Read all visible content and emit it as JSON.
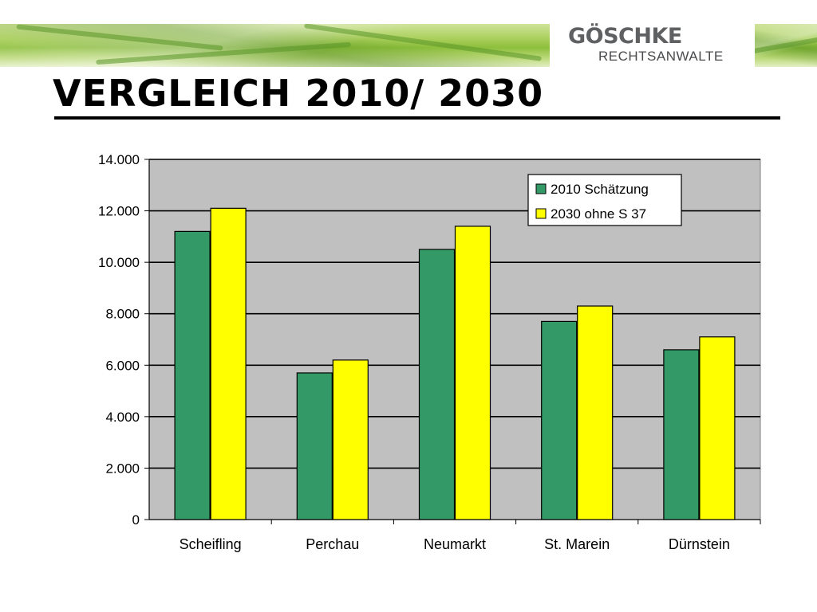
{
  "header": {
    "logo_name": "GÖSCHKE",
    "logo_sub": "RECHTSANWALTE"
  },
  "slide_title": "VERGLEICH 2010/ 2030",
  "colors": {
    "series_2010": "#339966",
    "series_2030": "#ffff00",
    "plot_background": "#c0c0c0",
    "banner_green": "#8dbf3c",
    "logo_gray": "#5f6062"
  },
  "chart_data": {
    "type": "bar",
    "categories": [
      "Scheifling",
      "Perchau",
      "Neumarkt",
      "St. Marein",
      "Dürnstein"
    ],
    "series": [
      {
        "name": "2010 Schätzung",
        "values": [
          11200,
          5700,
          10500,
          7700,
          6600
        ]
      },
      {
        "name": "2030 ohne S 37",
        "values": [
          12100,
          6200,
          11400,
          8300,
          7100
        ]
      }
    ],
    "ylim": [
      0,
      14000
    ],
    "yticks": [
      0,
      2000,
      4000,
      6000,
      8000,
      10000,
      12000,
      14000
    ],
    "ytick_labels": [
      "0",
      "2.000",
      "4.000",
      "6.000",
      "8.000",
      "10.000",
      "12.000",
      "14.000"
    ],
    "title": "",
    "xlabel": "",
    "ylabel": "",
    "grid": true,
    "legend_position": "top-right"
  }
}
